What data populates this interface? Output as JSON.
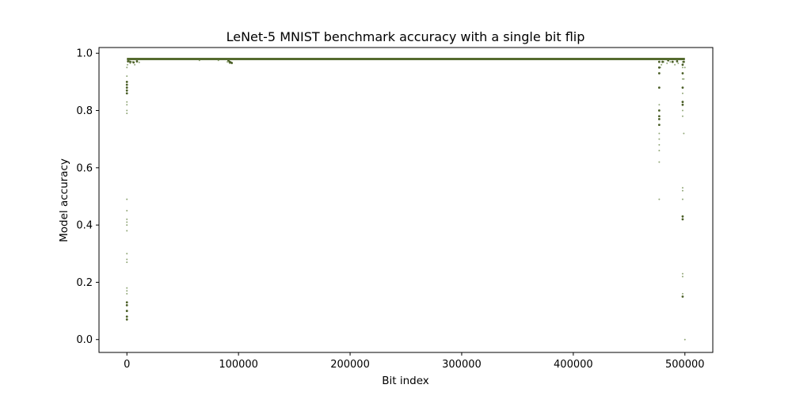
{
  "chart_data": {
    "type": "scatter",
    "title": "LeNet-5 MNIST benchmark accuracy with a single bit flip",
    "xlabel": "Bit index",
    "ylabel": "Model accuracy",
    "xlim": [
      -25000,
      525000
    ],
    "ylim": [
      -0.045,
      1.02
    ],
    "xticks": [
      0,
      100000,
      200000,
      300000,
      400000,
      500000
    ],
    "xtick_labels": [
      "0",
      "100000",
      "200000",
      "300000",
      "400000",
      "500000"
    ],
    "yticks": [
      0.0,
      0.2,
      0.4,
      0.6,
      0.8,
      1.0
    ],
    "ytick_labels": [
      "0.0",
      "0.2",
      "0.4",
      "0.6",
      "0.8",
      "1.0"
    ],
    "grid": false,
    "legend": "none",
    "baseline_accuracy": 0.98,
    "baseline_x_range": [
      0,
      500000
    ],
    "colors": {
      "point_light": "#93a87a",
      "point_dark": "#4a5e26",
      "baseline": "#556b2f"
    },
    "series": [
      {
        "style": "light",
        "points": [
          [
            0,
            0.49
          ],
          [
            0,
            0.45
          ],
          [
            0,
            0.42
          ],
          [
            0,
            0.41
          ],
          [
            0,
            0.4
          ],
          [
            0,
            0.38
          ],
          [
            0,
            0.3
          ],
          [
            0,
            0.28
          ],
          [
            0,
            0.27
          ],
          [
            0,
            0.18
          ],
          [
            0,
            0.17
          ],
          [
            0,
            0.16
          ],
          [
            0,
            0.83
          ],
          [
            0,
            0.82
          ],
          [
            0,
            0.8
          ],
          [
            0,
            0.79
          ],
          [
            0,
            0.92
          ],
          [
            0,
            0.95
          ],
          [
            500,
            0.96
          ],
          [
            1000,
            0.97
          ],
          [
            2000,
            0.975
          ],
          [
            3000,
            0.965
          ],
          [
            5000,
            0.97
          ],
          [
            7000,
            0.96
          ],
          [
            9000,
            0.97
          ],
          [
            11000,
            0.968
          ],
          [
            65000,
            0.975
          ],
          [
            82000,
            0.975
          ],
          [
            90000,
            0.97
          ],
          [
            92000,
            0.965
          ],
          [
            477000,
            0.82
          ],
          [
            477000,
            0.72
          ],
          [
            477000,
            0.7
          ],
          [
            477000,
            0.68
          ],
          [
            477000,
            0.66
          ],
          [
            477000,
            0.62
          ],
          [
            477000,
            0.49
          ],
          [
            478000,
            0.95
          ],
          [
            479000,
            0.96
          ],
          [
            481000,
            0.97
          ],
          [
            484000,
            0.965
          ],
          [
            487000,
            0.97
          ],
          [
            491000,
            0.96
          ],
          [
            494000,
            0.965
          ],
          [
            498000,
            0.97
          ],
          [
            498000,
            0.95
          ],
          [
            498000,
            0.93
          ],
          [
            498000,
            0.91
          ],
          [
            498000,
            0.88
          ],
          [
            498000,
            0.86
          ],
          [
            498000,
            0.8
          ],
          [
            498000,
            0.78
          ],
          [
            498000,
            0.53
          ],
          [
            498000,
            0.52
          ],
          [
            498000,
            0.49
          ],
          [
            498000,
            0.42
          ],
          [
            498000,
            0.23
          ],
          [
            498000,
            0.22
          ],
          [
            498000,
            0.16
          ],
          [
            499000,
            0.91
          ],
          [
            499000,
            0.72
          ],
          [
            500000,
            0.95
          ],
          [
            500000,
            0.0
          ]
        ]
      },
      {
        "style": "dark",
        "points": [
          [
            0,
            0.89
          ],
          [
            0,
            0.88
          ],
          [
            0,
            0.87
          ],
          [
            0,
            0.9
          ],
          [
            0,
            0.86
          ],
          [
            0,
            0.13
          ],
          [
            0,
            0.12
          ],
          [
            0,
            0.1
          ],
          [
            0,
            0.08
          ],
          [
            0,
            0.07
          ],
          [
            1000,
            0.972
          ],
          [
            3000,
            0.97
          ],
          [
            6000,
            0.968
          ],
          [
            9000,
            0.972
          ],
          [
            91000,
            0.975
          ],
          [
            92000,
            0.97
          ],
          [
            93000,
            0.968
          ],
          [
            94000,
            0.966
          ],
          [
            477000,
            0.97
          ],
          [
            477000,
            0.95
          ],
          [
            477000,
            0.93
          ],
          [
            477000,
            0.88
          ],
          [
            477000,
            0.8
          ],
          [
            477000,
            0.78
          ],
          [
            477000,
            0.77
          ],
          [
            477000,
            0.75
          ],
          [
            480000,
            0.97
          ],
          [
            485000,
            0.975
          ],
          [
            489000,
            0.97
          ],
          [
            493000,
            0.972
          ],
          [
            498000,
            0.96
          ],
          [
            498000,
            0.93
          ],
          [
            498000,
            0.88
          ],
          [
            498000,
            0.83
          ],
          [
            498000,
            0.82
          ],
          [
            498000,
            0.43
          ],
          [
            498000,
            0.42
          ],
          [
            498000,
            0.15
          ],
          [
            499000,
            0.97
          ]
        ]
      }
    ]
  }
}
